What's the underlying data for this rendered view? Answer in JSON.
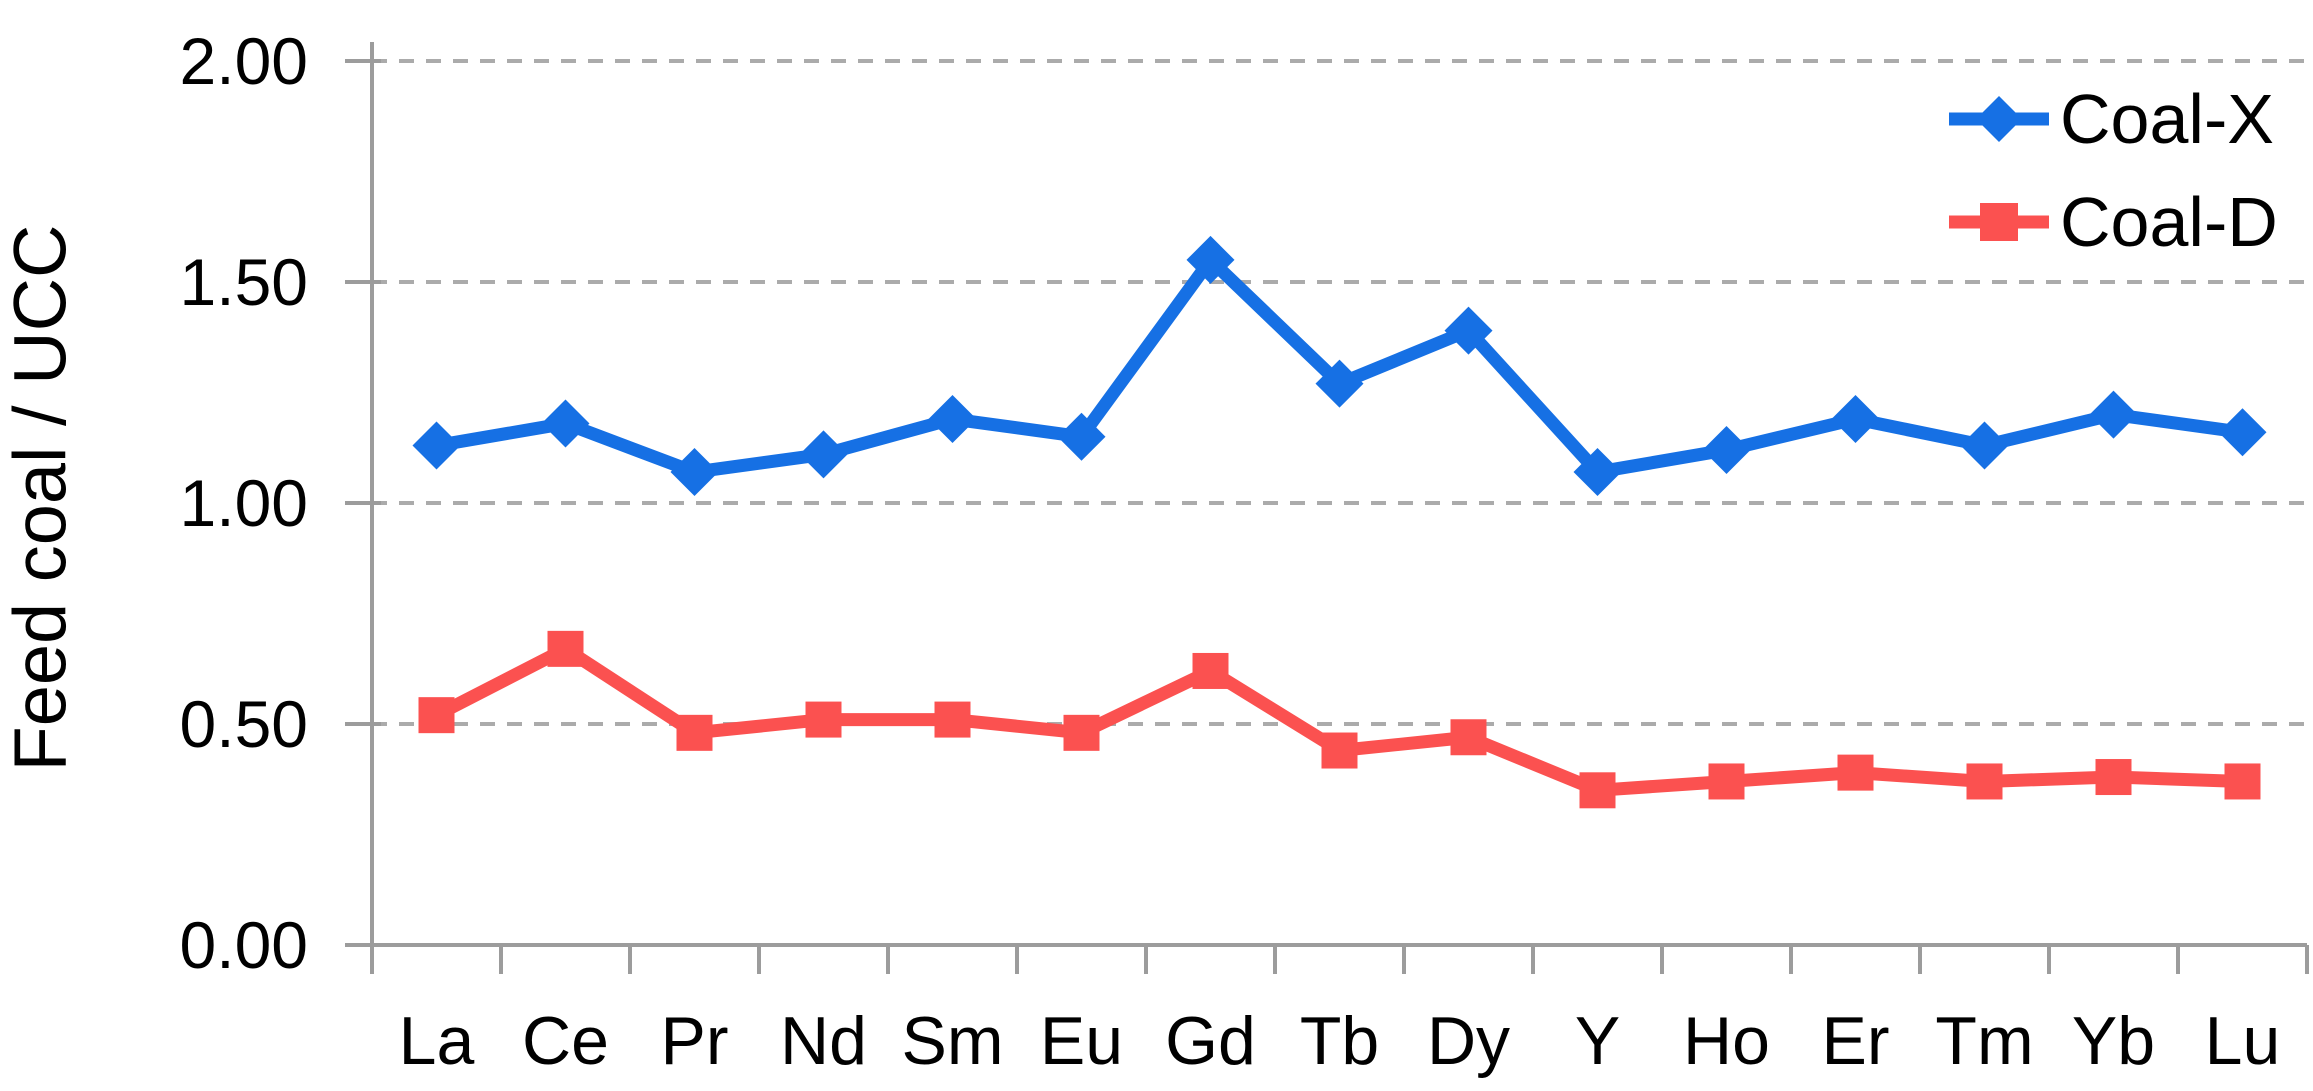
{
  "chart_data": {
    "type": "line",
    "title": "",
    "xlabel": "",
    "ylabel": "Feed coal / UCC",
    "categories": [
      "La",
      "Ce",
      "Pr",
      "Nd",
      "Sm",
      "Eu",
      "Gd",
      "Tb",
      "Dy",
      "Y",
      "Ho",
      "Er",
      "Tm",
      "Yb",
      "Lu"
    ],
    "series": [
      {
        "name": "Coal-X",
        "color": "#1670E4",
        "marker": "diamond",
        "values": [
          1.13,
          1.18,
          1.07,
          1.11,
          1.19,
          1.15,
          1.55,
          1.27,
          1.39,
          1.07,
          1.12,
          1.19,
          1.13,
          1.2,
          1.16
        ]
      },
      {
        "name": "Coal-D",
        "color": "#FB5150",
        "marker": "square",
        "values": [
          0.52,
          0.67,
          0.48,
          0.51,
          0.51,
          0.48,
          0.62,
          0.44,
          0.47,
          0.35,
          0.37,
          0.39,
          0.37,
          0.38,
          0.37
        ]
      }
    ],
    "ylim": [
      0,
      2
    ],
    "ytick_step": 0.5,
    "ytick_labels": [
      "0.00",
      "0.50",
      "1.00",
      "1.50",
      "2.00"
    ],
    "grid": "horizontal-dashed",
    "legend_position": "top-right"
  },
  "colors": {
    "background": "#ffffff",
    "gridline": "#ABABAB",
    "axis": "#9C9C9C",
    "text": "#000000"
  }
}
